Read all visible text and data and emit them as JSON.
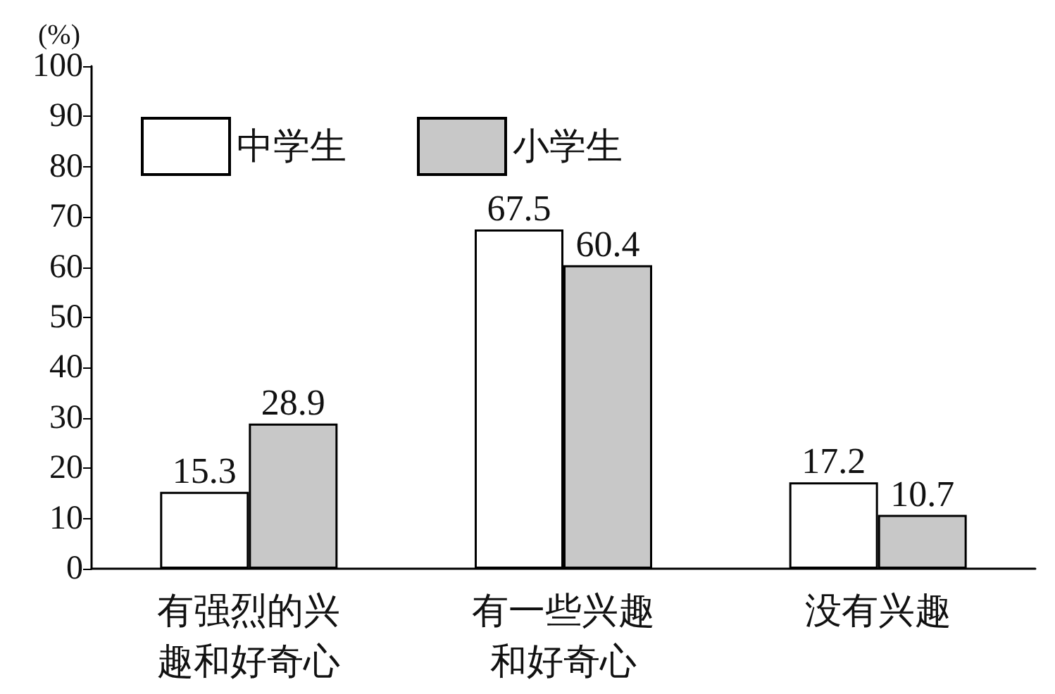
{
  "chart_data": {
    "type": "bar",
    "ylabel": "(%)",
    "categories": [
      "有强烈的兴趣和好奇心",
      "有一些兴趣和好奇心",
      "没有兴趣"
    ],
    "series": [
      {
        "name": "中学生",
        "color": "#ffffff",
        "values": [
          15.3,
          67.5,
          17.2
        ]
      },
      {
        "name": "小学生",
        "color": "#c8c8c8",
        "values": [
          28.9,
          60.4,
          10.7
        ]
      }
    ],
    "ylim": [
      0,
      100
    ],
    "yticks": [
      0,
      10,
      20,
      30,
      40,
      50,
      60,
      70,
      80,
      90,
      100
    ],
    "grid": false,
    "legend": "top left",
    "data_labels": true
  }
}
